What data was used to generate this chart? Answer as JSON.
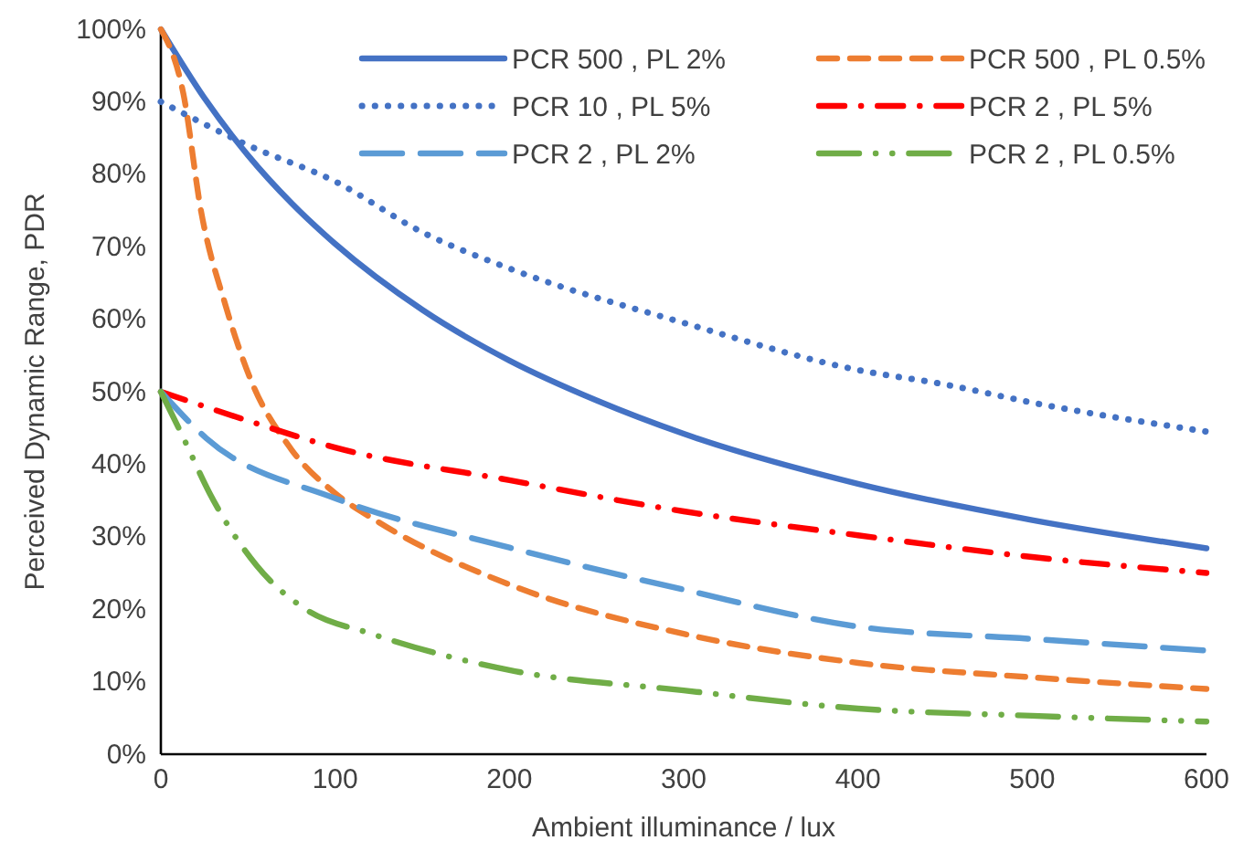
{
  "chart_data": {
    "type": "line",
    "xlabel": "Ambient illuminance / lux",
    "ylabel": "Perceived Dynamic Range, PDR",
    "xlim": [
      0,
      600
    ],
    "xticks": [
      0,
      100,
      200,
      300,
      400,
      500,
      600
    ],
    "ylim": [
      0,
      100
    ],
    "yticks": [
      {
        "value": 0,
        "label": "0%"
      },
      {
        "value": 10,
        "label": "10%"
      },
      {
        "value": 20,
        "label": "20%"
      },
      {
        "value": 30,
        "label": "30%"
      },
      {
        "value": 40,
        "label": "40%"
      },
      {
        "value": 50,
        "label": "50%"
      },
      {
        "value": 60,
        "label": "60%"
      },
      {
        "value": 70,
        "label": "70%"
      },
      {
        "value": 80,
        "label": "80%"
      },
      {
        "value": 90,
        "label": "90%"
      },
      {
        "value": 100,
        "label": "100%"
      }
    ],
    "grid": false,
    "legend": "top right",
    "marker": "none",
    "series": [
      {
        "name": "PCR 500 , PL 2%",
        "color": "#4472c4",
        "line_style": "solid",
        "x": [
          0,
          25,
          50,
          75,
          100,
          150,
          200,
          250,
          300,
          400,
          500,
          600
        ],
        "values": [
          100,
          90.5,
          82.6,
          76,
          70.4,
          61.3,
          54.3,
          48.8,
          44.2,
          37.3,
          32.3,
          28.4
        ]
      },
      {
        "name": "PCR 500 , PL 0.5%",
        "color": "#ed7d31",
        "line_style": "dashed",
        "x": [
          0,
          13,
          23,
          37,
          51,
          75,
          100,
          125,
          200,
          300,
          400,
          500,
          600
        ],
        "values": [
          100,
          91,
          75,
          62,
          52,
          42,
          36,
          32,
          23.4,
          16.6,
          12.6,
          10.6,
          9
        ]
      },
      {
        "name": "PCR 10 , PL 5%",
        "color": "#4472c4",
        "line_style": "dotted",
        "x": [
          0,
          50,
          100,
          150,
          200,
          300,
          400,
          450,
          500,
          600
        ],
        "values": [
          90,
          84,
          79,
          72,
          67,
          59.5,
          53,
          51,
          48.5,
          44.5
        ]
      },
      {
        "name": "PCR 2 , PL 5%",
        "color": "#ff0000",
        "line_style": "dashdot",
        "x": [
          0,
          50,
          100,
          200,
          300,
          400,
          500,
          600
        ],
        "values": [
          50,
          46,
          42.3,
          37.8,
          33.5,
          30.2,
          27.2,
          25
        ]
      },
      {
        "name": "PCR 2 , PL 2%",
        "color": "#5b9bd5",
        "line_style": "longdash",
        "x": [
          0,
          26,
          100,
          200,
          300,
          400,
          500,
          600
        ],
        "values": [
          50,
          43.6,
          35.3,
          28.5,
          22.7,
          17.6,
          15.9,
          14.3
        ]
      },
      {
        "name": "PCR 2 , PL 0.5%",
        "color": "#70ad47",
        "line_style": "dashdotdot",
        "x": [
          0,
          13,
          28,
          55,
          83,
          121,
          200,
          300,
          400,
          500,
          600
        ],
        "values": [
          50,
          43.6,
          36,
          26,
          20,
          16.6,
          11.6,
          8.8,
          6.3,
          5.3,
          4.5
        ]
      }
    ]
  }
}
